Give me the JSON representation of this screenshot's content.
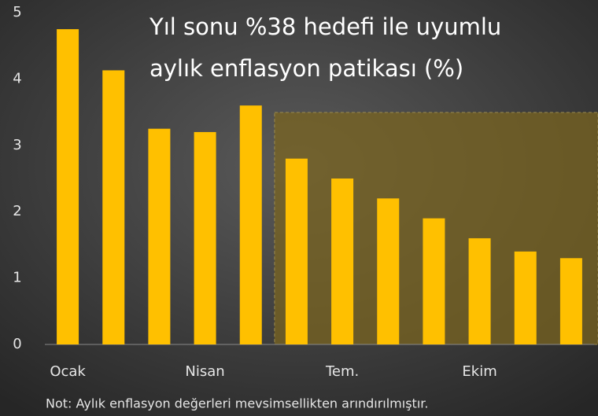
{
  "chart_data": {
    "type": "bar",
    "title": [
      "Yıl sonu %38 hedefi ile uyumlu",
      "aylık enflasyon patikası (%)"
    ],
    "categories": [
      "Ocak",
      null,
      null,
      "Nisan",
      null,
      null,
      "Tem.",
      null,
      null,
      "Ekim",
      null,
      null
    ],
    "values": [
      4.75,
      4.13,
      3.25,
      3.2,
      3.6,
      2.8,
      2.5,
      2.2,
      1.9,
      1.6,
      1.4,
      1.3
    ],
    "color": "#ffc000",
    "ylim": [
      0,
      5
    ],
    "yticks": [
      0,
      1,
      2,
      3,
      4,
      5
    ],
    "grid": false,
    "note": "Not: Aylık enflasyon değerleri mevsimsellikten arındırılmıştır."
  }
}
